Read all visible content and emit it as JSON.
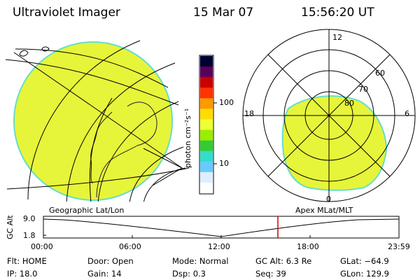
{
  "header": {
    "title": "Ultraviolet Imager",
    "date": "15 Mar 07",
    "time": "15:56:20 UT"
  },
  "colorbar": {
    "unit_label": "photon cm⁻²s⁻¹",
    "ticks": [
      "100",
      "10"
    ],
    "colors": [
      "#000033",
      "#5a005a",
      "#cc0000",
      "#ff3300",
      "#ff9900",
      "#ffdd00",
      "#eeff33",
      "#99ee00",
      "#33cc33",
      "#33ddcc",
      "#66ccff",
      "#ddeeff",
      "#ffffff"
    ]
  },
  "polar_plot": {
    "mlt_labels": {
      "top": "12",
      "left": "18",
      "right": "6",
      "bottom": "0"
    },
    "lat_labels": [
      "60",
      "70",
      "80"
    ]
  },
  "timeline": {
    "y_axis_label": "GC Alt",
    "y_ticks": [
      "9.0",
      "1.8"
    ],
    "left_title": "Geographic Lat/Lon",
    "right_title": "Apex MLat/MLT",
    "x_ticks": [
      "00:00",
      "06:00",
      "12:00",
      "18:00",
      "23:59"
    ],
    "current_marker_color": "#cc0000"
  },
  "info": {
    "row1": [
      {
        "key": "Flt:",
        "value": "HOME"
      },
      {
        "key": "Door:",
        "value": "Open"
      },
      {
        "key": "Mode:",
        "value": "Normal"
      },
      {
        "key": "GC Alt:",
        "value": "6.3 Re"
      },
      {
        "key": "GLat:",
        "value": "−64.9"
      }
    ],
    "row2": [
      {
        "key": "IP:",
        "value": "18.0"
      },
      {
        "key": "Gain:",
        "value": "14"
      },
      {
        "key": "Dsp:",
        "value": "0.3"
      },
      {
        "key": "Seq:",
        "value": "39"
      },
      {
        "key": "GLon:",
        "value": "129.9"
      }
    ]
  },
  "colors": {
    "image_fill": "#e6f53a",
    "image_edge": "#66ddcc",
    "land_outline": "#222222"
  }
}
